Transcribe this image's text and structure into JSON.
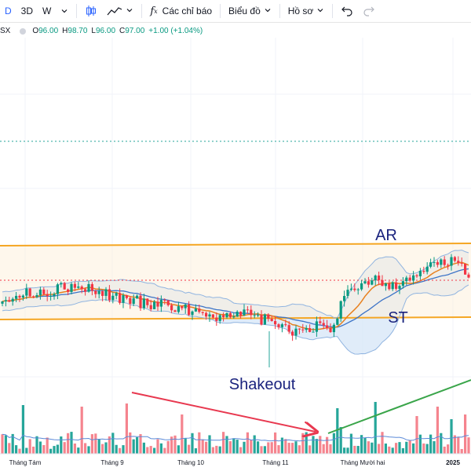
{
  "toolbar": {
    "interval_selected": "D",
    "interval_3d": "3D",
    "interval_w": "W",
    "indicators_label": "Các chỉ báo",
    "chart_type_label": "Biểu đồ",
    "profile_label": "Hồ sơ"
  },
  "legend": {
    "symbol_suffix": "SX",
    "open_key": "O",
    "open": "96.00",
    "high_key": "H",
    "high": "98.70",
    "low_key": "L",
    "low": "96.00",
    "close_key": "C",
    "close": "97.00",
    "change": "+1.00 (+1.04%)",
    "up_color": "#089981"
  },
  "annotations": {
    "ar": "AR",
    "st": "ST",
    "shakeout": "Shakeout"
  },
  "colors": {
    "up": "#089981",
    "down": "#f23645",
    "range": "#f5a623",
    "bb_fill": "#d8e7f7",
    "bb_line": "#90b4e0",
    "ma": "#e8801e",
    "basis": "#3d74c7",
    "arrow_down": "#e8384f",
    "arrow_up": "#3aa54a"
  },
  "chart_data": {
    "type": "candlestick",
    "x_labels": [
      "Tháng Tám",
      "Tháng 9",
      "Tháng 10",
      "Tháng 11",
      "Tháng Mười hai",
      "2025"
    ],
    "last_bar": {
      "open": 96.0,
      "high": 98.7,
      "low": 96.0,
      "close": 97.0
    },
    "notes": [
      "AR",
      "ST",
      "Shakeout"
    ],
    "grid": true
  }
}
